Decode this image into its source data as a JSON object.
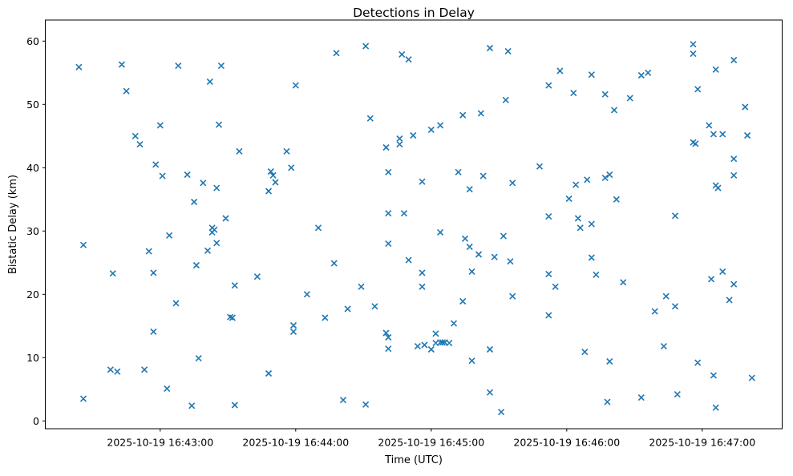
{
  "figure": {
    "background": "#ffffff",
    "spine_color": "#000000",
    "text_color": "#000000"
  },
  "chart_data": {
    "type": "scatter",
    "title": "Detections in Delay",
    "xlabel": "Time (UTC)",
    "ylabel": "Bistatic Delay (km)",
    "date": "2025-10-19",
    "marker": {
      "style": "x",
      "color": "#1f77b4",
      "size": 7
    },
    "grid": false,
    "legend": null,
    "x_tick_labels": [
      "2025-10-19 16:43:00",
      "2025-10-19 16:44:00",
      "2025-10-19 16:45:00",
      "2025-10-19 16:46:00",
      "2025-10-19 16:47:00"
    ],
    "x_tick_times": [
      "16:43:00",
      "16:44:00",
      "16:45:00",
      "16:46:00",
      "16:47:00"
    ],
    "y_ticks": [
      0,
      10,
      20,
      30,
      40,
      50,
      60
    ],
    "x_axis_range_utc": [
      "16:42:09",
      "16:47:36"
    ],
    "ylim": [
      -1.2,
      63.3
    ],
    "points": [
      [
        "16:42:24",
        55.9
      ],
      [
        "16:42:43",
        56.3
      ],
      [
        "16:43:08",
        56.1
      ],
      [
        "16:43:27",
        56.1
      ],
      [
        "16:43:22",
        53.6
      ],
      [
        "16:42:45",
        52.1
      ],
      [
        "16:43:00",
        46.7
      ],
      [
        "16:43:26",
        46.8
      ],
      [
        "16:42:49",
        45.0
      ],
      [
        "16:42:51",
        43.7
      ],
      [
        "16:42:58",
        40.5
      ],
      [
        "16:43:01",
        38.7
      ],
      [
        "16:43:12",
        38.9
      ],
      [
        "16:43:19",
        37.6
      ],
      [
        "16:43:25",
        36.8
      ],
      [
        "16:43:15",
        34.6
      ],
      [
        "16:43:29",
        32.0
      ],
      [
        "16:43:23",
        30.5
      ],
      [
        "16:43:24",
        30.2
      ],
      [
        "16:43:23",
        29.8
      ],
      [
        "16:43:25",
        28.1
      ],
      [
        "16:43:21",
        26.9
      ],
      [
        "16:43:04",
        29.3
      ],
      [
        "16:42:26",
        27.8
      ],
      [
        "16:42:55",
        26.8
      ],
      [
        "16:43:16",
        24.6
      ],
      [
        "16:42:39",
        23.3
      ],
      [
        "16:42:57",
        23.4
      ],
      [
        "16:43:07",
        18.6
      ],
      [
        "16:42:57",
        14.1
      ],
      [
        "16:43:17",
        9.9
      ],
      [
        "16:42:38",
        8.1
      ],
      [
        "16:42:41",
        7.8
      ],
      [
        "16:42:53",
        8.1
      ],
      [
        "16:43:03",
        5.1
      ],
      [
        "16:42:26",
        3.5
      ],
      [
        "16:43:14",
        2.4
      ],
      [
        "16:44:18",
        58.1
      ],
      [
        "16:44:31",
        59.2
      ],
      [
        "16:44:47",
        57.9
      ],
      [
        "16:44:50",
        57.1
      ],
      [
        "16:44:00",
        53.0
      ],
      [
        "16:44:33",
        47.8
      ],
      [
        "16:44:52",
        45.1
      ],
      [
        "16:44:46",
        44.6
      ],
      [
        "16:44:46",
        43.7
      ],
      [
        "16:44:40",
        43.2
      ],
      [
        "16:43:35",
        42.6
      ],
      [
        "16:43:56",
        42.6
      ],
      [
        "16:43:49",
        39.4
      ],
      [
        "16:43:50",
        38.8
      ],
      [
        "16:43:51",
        37.7
      ],
      [
        "16:43:48",
        36.3
      ],
      [
        "16:43:58",
        40.0
      ],
      [
        "16:44:41",
        39.3
      ],
      [
        "16:44:56",
        37.8
      ],
      [
        "16:44:41",
        32.8
      ],
      [
        "16:44:48",
        32.8
      ],
      [
        "16:44:10",
        30.5
      ],
      [
        "16:44:41",
        28.0
      ],
      [
        "16:44:50",
        25.4
      ],
      [
        "16:44:17",
        24.9
      ],
      [
        "16:43:43",
        22.8
      ],
      [
        "16:43:33",
        21.4
      ],
      [
        "16:44:29",
        21.2
      ],
      [
        "16:44:05",
        20.0
      ],
      [
        "16:44:23",
        17.7
      ],
      [
        "16:44:35",
        18.1
      ],
      [
        "16:44:13",
        16.3
      ],
      [
        "16:43:31",
        16.4
      ],
      [
        "16:43:32",
        16.3
      ],
      [
        "16:43:59",
        15.1
      ],
      [
        "16:43:59",
        14.1
      ],
      [
        "16:44:40",
        13.9
      ],
      [
        "16:44:41",
        13.2
      ],
      [
        "16:44:41",
        11.4
      ],
      [
        "16:44:54",
        11.8
      ],
      [
        "16:43:48",
        7.5
      ],
      [
        "16:43:33",
        2.5
      ],
      [
        "16:44:21",
        3.3
      ],
      [
        "16:44:31",
        2.6
      ],
      [
        "16:45:26",
        58.9
      ],
      [
        "16:45:34",
        58.4
      ],
      [
        "16:45:57",
        55.3
      ],
      [
        "16:46:11",
        54.7
      ],
      [
        "16:45:52",
        53.0
      ],
      [
        "16:46:03",
        51.8
      ],
      [
        "16:46:17",
        51.6
      ],
      [
        "16:45:33",
        50.7
      ],
      [
        "16:45:22",
        48.6
      ],
      [
        "16:45:14",
        48.3
      ],
      [
        "16:45:04",
        46.7
      ],
      [
        "16:45:00",
        46.0
      ],
      [
        "16:45:48",
        40.2
      ],
      [
        "16:45:12",
        39.3
      ],
      [
        "16:45:23",
        38.7
      ],
      [
        "16:45:17",
        36.6
      ],
      [
        "16:45:36",
        37.6
      ],
      [
        "16:46:04",
        37.3
      ],
      [
        "16:46:09",
        38.1
      ],
      [
        "16:46:01",
        35.1
      ],
      [
        "16:45:52",
        32.3
      ],
      [
        "16:46:05",
        32.0
      ],
      [
        "16:46:06",
        30.5
      ],
      [
        "16:46:11",
        31.1
      ],
      [
        "16:45:04",
        29.8
      ],
      [
        "16:45:32",
        29.2
      ],
      [
        "16:45:15",
        28.8
      ],
      [
        "16:45:17",
        27.5
      ],
      [
        "16:45:21",
        26.3
      ],
      [
        "16:45:28",
        25.9
      ],
      [
        "16:45:35",
        25.2
      ],
      [
        "16:46:11",
        25.8
      ],
      [
        "16:45:18",
        23.6
      ],
      [
        "16:44:56",
        23.4
      ],
      [
        "16:45:52",
        23.2
      ],
      [
        "16:46:13",
        23.1
      ],
      [
        "16:44:56",
        21.2
      ],
      [
        "16:45:55",
        21.2
      ],
      [
        "16:45:36",
        19.7
      ],
      [
        "16:45:14",
        18.9
      ],
      [
        "16:45:52",
        16.7
      ],
      [
        "16:45:10",
        15.4
      ],
      [
        "16:45:02",
        13.8
      ],
      [
        "16:44:57",
        12.0
      ],
      [
        "16:45:00",
        11.3
      ],
      [
        "16:45:02",
        12.3
      ],
      [
        "16:45:04",
        12.4
      ],
      [
        "16:45:05",
        12.4
      ],
      [
        "16:45:06",
        12.4
      ],
      [
        "16:45:08",
        12.3
      ],
      [
        "16:45:26",
        11.3
      ],
      [
        "16:45:18",
        9.5
      ],
      [
        "16:46:08",
        10.9
      ],
      [
        "16:45:26",
        4.5
      ],
      [
        "16:45:31",
        1.4
      ],
      [
        "16:46:56",
        59.5
      ],
      [
        "16:46:56",
        58.0
      ],
      [
        "16:47:14",
        57.0
      ],
      [
        "16:47:06",
        55.5
      ],
      [
        "16:46:33",
        54.6
      ],
      [
        "16:46:36",
        55.0
      ],
      [
        "16:46:28",
        51.0
      ],
      [
        "16:46:21",
        49.1
      ],
      [
        "16:46:58",
        52.4
      ],
      [
        "16:47:19",
        49.6
      ],
      [
        "16:47:03",
        46.7
      ],
      [
        "16:47:05",
        45.3
      ],
      [
        "16:47:09",
        45.3
      ],
      [
        "16:46:56",
        44.0
      ],
      [
        "16:46:57",
        43.8
      ],
      [
        "16:47:20",
        45.1
      ],
      [
        "16:47:14",
        41.4
      ],
      [
        "16:46:17",
        38.4
      ],
      [
        "16:46:19",
        38.9
      ],
      [
        "16:46:22",
        35.0
      ],
      [
        "16:47:14",
        38.8
      ],
      [
        "16:47:06",
        37.2
      ],
      [
        "16:47:07",
        36.8
      ],
      [
        "16:46:48",
        32.4
      ],
      [
        "16:46:25",
        21.9
      ],
      [
        "16:47:04",
        22.4
      ],
      [
        "16:47:09",
        23.6
      ],
      [
        "16:47:14",
        21.6
      ],
      [
        "16:46:44",
        19.7
      ],
      [
        "16:46:48",
        18.1
      ],
      [
        "16:46:39",
        17.3
      ],
      [
        "16:47:12",
        19.1
      ],
      [
        "16:46:43",
        11.8
      ],
      [
        "16:46:19",
        9.4
      ],
      [
        "16:46:58",
        9.2
      ],
      [
        "16:47:05",
        7.2
      ],
      [
        "16:47:22",
        6.8
      ],
      [
        "16:46:49",
        4.2
      ],
      [
        "16:46:33",
        3.7
      ],
      [
        "16:46:18",
        3.0
      ],
      [
        "16:47:06",
        2.1
      ]
    ]
  }
}
